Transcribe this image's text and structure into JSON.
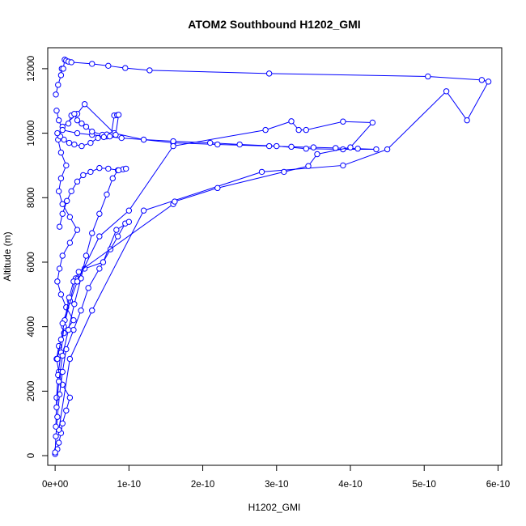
{
  "chart_data": {
    "type": "scatter",
    "title": "ATOM2 Southbound H1202_GMI",
    "xlabel": "H1202_GMI",
    "ylabel": "Altitude (m)",
    "xlim": [
      -1e-11,
      6.05e-10
    ],
    "ylim": [
      -300,
      12650
    ],
    "x_ticks": [
      0,
      1e-10,
      2e-10,
      3e-10,
      4e-10,
      5e-10,
      6e-10
    ],
    "x_tick_labels": [
      "0e+00",
      "1e-10",
      "2e-10",
      "3e-10",
      "4e-10",
      "5e-10",
      "6e-10"
    ],
    "y_ticks": [
      0,
      2000,
      4000,
      6000,
      8000,
      10000,
      12000
    ],
    "y_tick_labels": [
      "0",
      "2000",
      "4000",
      "6000",
      "8000",
      "10000",
      "12000"
    ],
    "series_color": "#0000ff",
    "marker": "open-circle",
    "connected": true,
    "grid": false,
    "legend": "none",
    "series": [
      {
        "x": [
          0,
          3e-12,
          5e-12,
          8e-12,
          1e-11,
          1.5e-11,
          2e-11,
          1e-11,
          5e-12,
          2e-12,
          5e-12,
          1.2e-11,
          2.5e-11,
          1.5e-11,
          8e-12,
          3e-12,
          6e-12,
          1e-11,
          2e-11,
          3e-11,
          2e-11,
          1e-11,
          5e-12,
          8e-12,
          1.5e-11,
          8e-12,
          4e-12,
          1e-11,
          3e-11,
          4e-11,
          8e-11,
          1.2e-10,
          1.6e-10,
          2.2e-10,
          2.9e-10,
          3.2e-10,
          3.5e-10,
          3.8e-10,
          4.1e-10,
          4.35e-10,
          3.9e-10,
          3.4e-10,
          3e-10,
          2.5e-10,
          2.1e-10,
          1.6e-10,
          1.2e-10,
          9e-11,
          7e-11,
          5e-11,
          3e-11,
          1e-11,
          5e-12,
          2e-12
        ],
        "y": [
          50,
          200,
          400,
          700,
          1000,
          1400,
          1800,
          2200,
          2600,
          3000,
          3400,
          3800,
          4200,
          4600,
          5000,
          5400,
          5800,
          6200,
          6600,
          7000,
          7400,
          7800,
          8200,
          8600,
          9000,
          9400,
          9800,
          10200,
          10600,
          10900,
          10000,
          9800,
          9700,
          9650,
          9600,
          9580,
          9560,
          9540,
          9520,
          9500,
          9500,
          9520,
          9600,
          9650,
          9700,
          9750,
          9800,
          9850,
          9900,
          9950,
          10000,
          10100,
          10400,
          10700
        ]
      },
      {
        "x": [
          1e-12,
          4e-12,
          8e-12,
          9e-12,
          1.1e-11,
          1.3e-11,
          1.5e-11,
          1.8e-11,
          2.2e-11,
          5e-11,
          7.2e-11,
          9.5e-11,
          1.28e-10,
          2.9e-10,
          5.05e-10,
          5.78e-10,
          5.87e-10,
          5.58e-10,
          5.3e-10,
          4.5e-10,
          3.9e-10,
          2.8e-10,
          1.2e-10,
          5e-11,
          2e-11,
          5e-12
        ],
        "y": [
          11200,
          11500,
          11800,
          12000,
          12000,
          12280,
          12250,
          12220,
          12200,
          12150,
          12090,
          12020,
          11950,
          11850,
          11760,
          11650,
          11600,
          10400,
          11300,
          9500,
          9000,
          8800,
          7600,
          4500,
          3000,
          800
        ]
      },
      {
        "x": [
          0,
          1e-12,
          3e-12,
          6e-12,
          1e-11,
          1.5e-11,
          2.5e-11,
          3.5e-11,
          4.5e-11,
          6e-11,
          7.5e-11,
          8.5e-11,
          9.5e-11,
          1e-10,
          8.3e-11,
          6.5e-11,
          4e-11,
          2.8e-11,
          2e-11,
          1.2e-11,
          8e-12,
          4e-12,
          2e-12,
          1e-12
        ],
        "y": [
          100,
          600,
          1200,
          1900,
          2600,
          3300,
          3900,
          4500,
          5200,
          5800,
          6400,
          6800,
          7200,
          7250,
          7000,
          6000,
          5800,
          5500,
          4800,
          4000,
          3200,
          2500,
          1800,
          900
        ]
      },
      {
        "x": [
          2e-12,
          5e-12,
          1e-11,
          1.8e-11,
          2.6e-11,
          3.5e-11,
          4.2e-11,
          5e-11,
          6e-11,
          7e-11,
          7.8e-11,
          8.5e-11,
          9.2e-11,
          9.6e-11,
          8.6e-11,
          7.2e-11,
          6e-11,
          4.8e-11,
          3.8e-11,
          3e-11,
          2.2e-11,
          1.6e-11,
          1e-11,
          6e-12
        ],
        "y": [
          1500,
          2300,
          3100,
          3900,
          4700,
          5500,
          6200,
          6900,
          7500,
          8100,
          8600,
          8850,
          8880,
          8900,
          8850,
          8900,
          8920,
          8800,
          8700,
          8500,
          8200,
          7900,
          7500,
          7100
        ]
      },
      {
        "x": [
          1.8e-11,
          2.2e-11,
          2.6e-11,
          3e-11,
          3.6e-11,
          4.2e-11,
          5e-11,
          6.4e-11,
          7e-11,
          7.6e-11,
          8e-11,
          8.4e-11,
          8.6e-11,
          8.2e-11,
          7.4e-11,
          6.6e-11,
          5.8e-11,
          4.8e-11,
          3.6e-11,
          2.6e-11,
          1.9e-11,
          1.2e-11,
          7e-12,
          3e-12
        ],
        "y": [
          10300,
          10550,
          10600,
          10400,
          10300,
          10200,
          10050,
          9950,
          9960,
          9940,
          10550,
          10560,
          10570,
          9950,
          9900,
          9880,
          9850,
          9700,
          9600,
          9650,
          9700,
          9800,
          9900,
          10000
        ]
      },
      {
        "x": [
          3e-12,
          8e-12,
          1.3e-11,
          1.9e-11,
          2.5e-11,
          3.2e-11,
          1.6e-10,
          1.62e-10,
          2.2e-10,
          3.1e-10,
          3.43e-10,
          3.55e-10,
          4e-10,
          4.3e-10,
          3.9e-10,
          3.4e-10,
          3.3e-10,
          3.2e-10,
          2.85e-10,
          1.6e-10,
          1e-10,
          6e-11,
          3e-11,
          1e-11
        ],
        "y": [
          3000,
          3600,
          4200,
          4900,
          5400,
          5700,
          7800,
          7880,
          8300,
          8800,
          8980,
          9350,
          9560,
          10330,
          10360,
          10100,
          10100,
          10370,
          10100,
          9600,
          7600,
          6800,
          5400,
          4100
        ]
      }
    ]
  }
}
